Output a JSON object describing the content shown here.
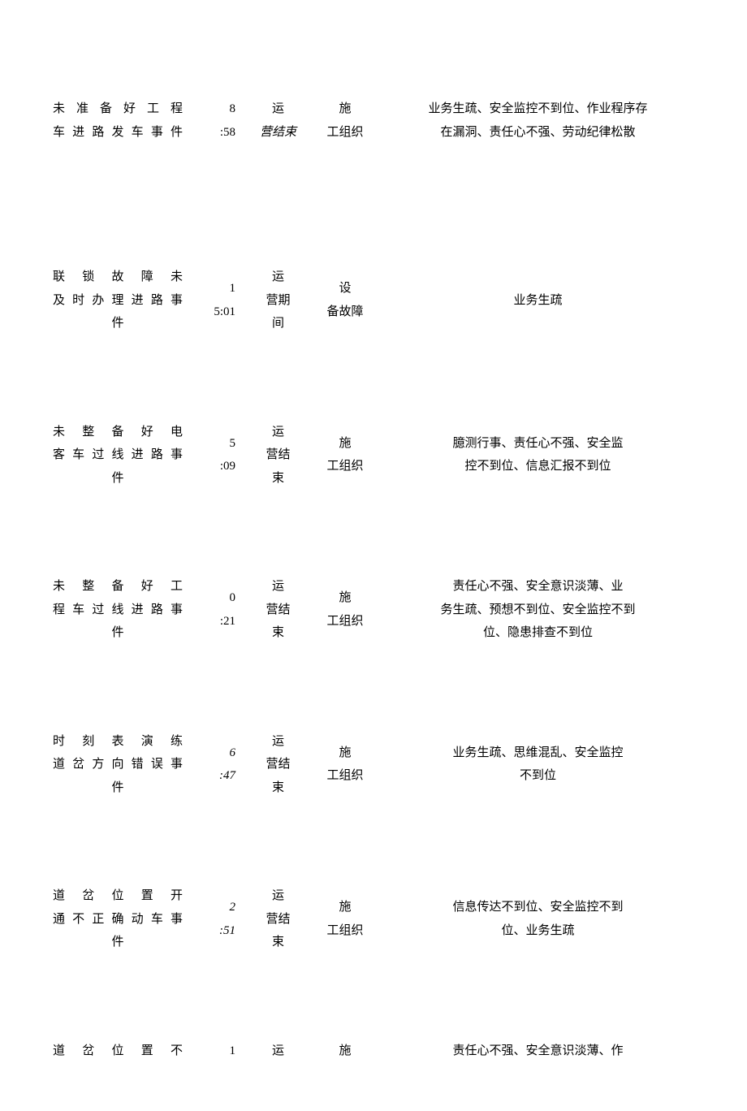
{
  "rows": [
    {
      "event_l1": "未准备好工程",
      "event_l2": "车进路发车事件",
      "event_l3": "",
      "time_l1": "8",
      "time_l2": ":58",
      "time_italic": false,
      "period_l1": "运",
      "period_l2": "营结束",
      "period_l3": "",
      "period_italic": true,
      "type_l1": "施",
      "type_l2": "工组织",
      "reason_l1": "业务生疏、安全监控不到位、作业程序存",
      "reason_l2": "在漏洞、责任心不强、劳动纪律松散",
      "reason_l3": ""
    },
    {
      "event_l1": "联锁故障未",
      "event_l2": "及时办理进路事",
      "event_l3": "件",
      "time_l1": "1",
      "time_l2": "5:01",
      "time_italic": false,
      "period_l1": "运",
      "period_l2": "营期",
      "period_l3": "间",
      "period_italic": false,
      "type_l1": "设",
      "type_l2": "备故障",
      "reason_l1": "业务生疏",
      "reason_l2": "",
      "reason_l3": ""
    },
    {
      "event_l1": "未整备好电",
      "event_l2": "客车过线进路事",
      "event_l3": "件",
      "time_l1": "5",
      "time_l2": ":09",
      "time_italic": false,
      "period_l1": "运",
      "period_l2": "营结",
      "period_l3": "束",
      "period_italic": false,
      "type_l1": "施",
      "type_l2": "工组织",
      "reason_l1": "臆测行事、责任心不强、安全监",
      "reason_l2": "控不到位、信息汇报不到位",
      "reason_l3": ""
    },
    {
      "event_l1": "未整备好工",
      "event_l2": "程车过线进路事",
      "event_l3": "件",
      "time_l1": "0",
      "time_l2": ":21",
      "time_italic": false,
      "period_l1": "运",
      "period_l2": "营结",
      "period_l3": "束",
      "period_italic": false,
      "type_l1": "施",
      "type_l2": "工组织",
      "reason_l1": "责任心不强、安全意识淡薄、业",
      "reason_l2": "务生疏、预想不到位、安全监控不到",
      "reason_l3": "位、隐患排查不到位"
    },
    {
      "event_l1": "时刻表演练",
      "event_l2": "道岔方向错误事",
      "event_l3": "件",
      "time_l1": "6",
      "time_l2": ":47",
      "time_italic": true,
      "period_l1": "运",
      "period_l2": "营结",
      "period_l3": "束",
      "period_italic": false,
      "type_l1": "施",
      "type_l2": "工组织",
      "reason_l1": "业务生疏、思维混乱、安全监控",
      "reason_l2": "不到位",
      "reason_l3": ""
    },
    {
      "event_l1": "道岔位置开",
      "event_l2": "通不正确动车事",
      "event_l3": "件",
      "time_l1": "2",
      "time_l2": ":51",
      "time_italic": true,
      "period_l1": "运",
      "period_l2": "营结",
      "period_l3": "束",
      "period_italic": false,
      "type_l1": "施",
      "type_l2": "工组织",
      "reason_l1": "信息传达不到位、安全监控不到",
      "reason_l2": "位、业务生疏",
      "reason_l3": ""
    },
    {
      "event_l1": "道岔位置不",
      "event_l2": "",
      "event_l3": "",
      "time_l1": "1",
      "time_l2": "",
      "time_italic": false,
      "period_l1": "运",
      "period_l2": "",
      "period_l3": "",
      "period_italic": false,
      "type_l1": "施",
      "type_l2": "",
      "reason_l1": "责任心不强、安全意识淡薄、作",
      "reason_l2": "",
      "reason_l3": ""
    }
  ]
}
